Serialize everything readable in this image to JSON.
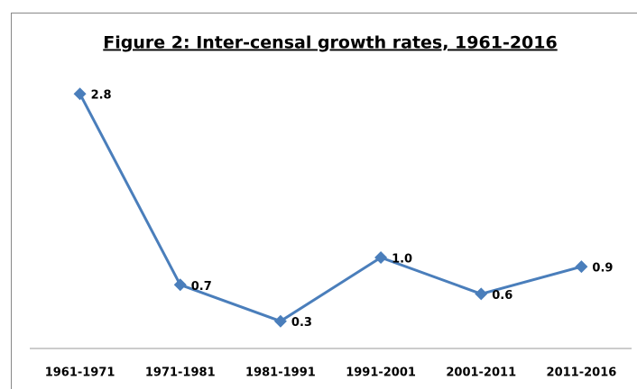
{
  "chart_data": {
    "type": "line",
    "title": "Figure 2: Inter-censal growth rates, 1961-2016",
    "categories": [
      "1961-1971",
      "1971-1981",
      "1981-1991",
      "1991-2001",
      "2001-2011",
      "2011-2016"
    ],
    "series": [
      {
        "name": "Growth rate",
        "color": "#4a7ebb",
        "values": [
          2.8,
          0.7,
          0.3,
          1.0,
          0.6,
          0.9
        ],
        "value_labels": [
          "2.8",
          "0.7",
          "0.3",
          "1.0",
          "0.6",
          "0.9"
        ]
      }
    ],
    "ylim": [
      0,
      3
    ]
  }
}
